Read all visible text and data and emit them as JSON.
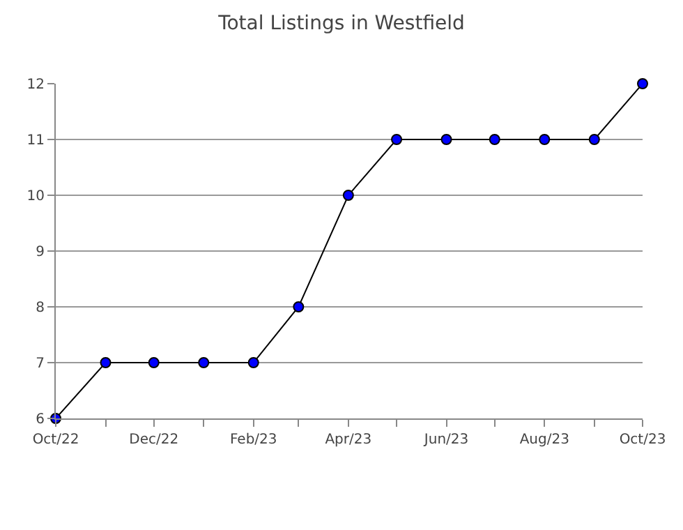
{
  "chart_data": {
    "type": "line",
    "title": "Total Listings in Westfield",
    "x": [
      "2022-10",
      "2022-11",
      "2022-12",
      "2023-01",
      "2023-02",
      "2023-03",
      "2023-04",
      "2023-05",
      "2023-06",
      "2023-07",
      "2023-08",
      "2023-09",
      "2023-10"
    ],
    "series": [
      {
        "color": "#0000ff",
        "values": [
          6,
          7,
          7,
          7,
          7,
          8,
          10,
          11,
          11,
          11,
          11,
          11,
          12
        ]
      }
    ],
    "xlim": [
      "2022-10",
      "2023-10"
    ],
    "xticks": [
      {
        "value": "2022-10",
        "label": "Oct/22"
      },
      {
        "value": "2022-11",
        "label": null
      },
      {
        "value": "2022-12",
        "label": "Dec/22"
      },
      {
        "value": "2023-01",
        "label": null
      },
      {
        "value": "2023-02",
        "label": "Feb/23"
      },
      {
        "value": "2023-03",
        "label": null
      },
      {
        "value": "2023-04",
        "label": "Apr/23"
      },
      {
        "value": "2023-05",
        "label": null
      },
      {
        "value": "2023-06",
        "label": "Jun/23"
      },
      {
        "value": "2023-07",
        "label": null
      },
      {
        "value": "2023-08",
        "label": "Aug/23"
      },
      {
        "value": "2023-09",
        "label": null
      },
      {
        "value": "2023-10",
        "label": "Oct/23"
      }
    ],
    "ylim": [
      6,
      12
    ],
    "yticks": [
      6,
      7,
      8,
      9,
      10,
      11,
      12
    ],
    "grid": "y",
    "marker": "circle",
    "line_style": "solid"
  }
}
